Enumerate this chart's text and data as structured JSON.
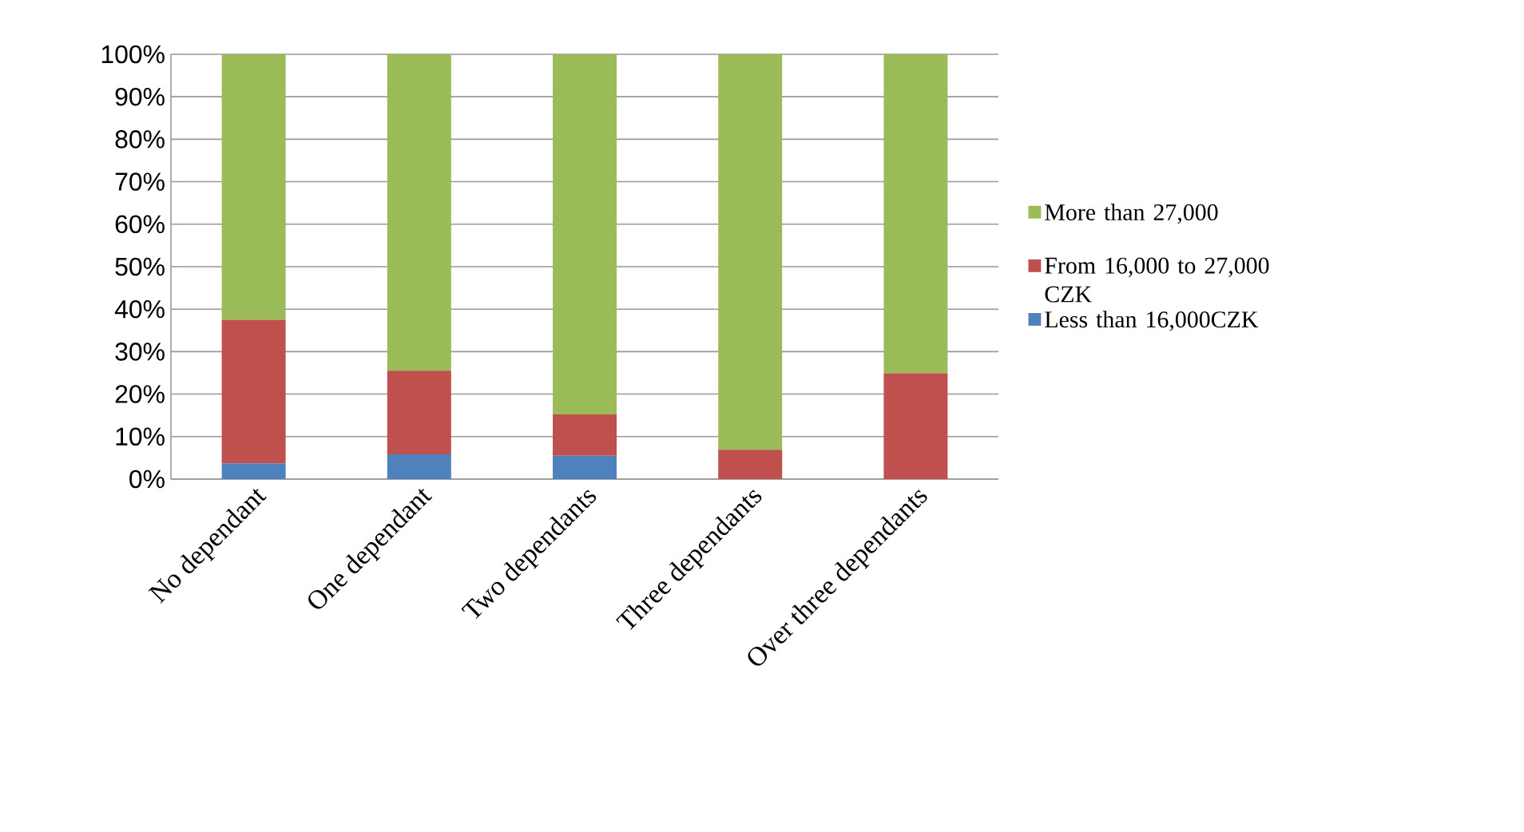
{
  "chart_data": {
    "type": "bar",
    "stacked": true,
    "categories": [
      "No dependant",
      "One dependant",
      "Two dependants",
      "Three dependants",
      "Over three dependants"
    ],
    "series": [
      {
        "name": "Less than 16,000CZK",
        "color": "#4f81bd",
        "values": [
          3.7,
          5.8,
          5.5,
          0,
          0
        ]
      },
      {
        "name": "From 16,000 to 27,000 CZK",
        "color": "#c0504d",
        "values": [
          33.8,
          19.7,
          9.7,
          6.9,
          24.9
        ]
      },
      {
        "name": "More than 27,000",
        "color": "#9bbb59",
        "values": [
          62.5,
          74.5,
          84.8,
          93.1,
          75.1
        ]
      }
    ],
    "ylim": [
      0,
      100
    ],
    "yticks": [
      {
        "value": 0,
        "label": "0%"
      },
      {
        "value": 10,
        "label": "10%"
      },
      {
        "value": 20,
        "label": "20%"
      },
      {
        "value": 30,
        "label": "30%"
      },
      {
        "value": 40,
        "label": "40%"
      },
      {
        "value": 50,
        "label": "50%"
      },
      {
        "value": 60,
        "label": "60%"
      },
      {
        "value": 70,
        "label": "70%"
      },
      {
        "value": 80,
        "label": "80%"
      },
      {
        "value": 90,
        "label": "90%"
      },
      {
        "value": 100,
        "label": "100%"
      }
    ],
    "grid": "y",
    "legend": "right"
  }
}
